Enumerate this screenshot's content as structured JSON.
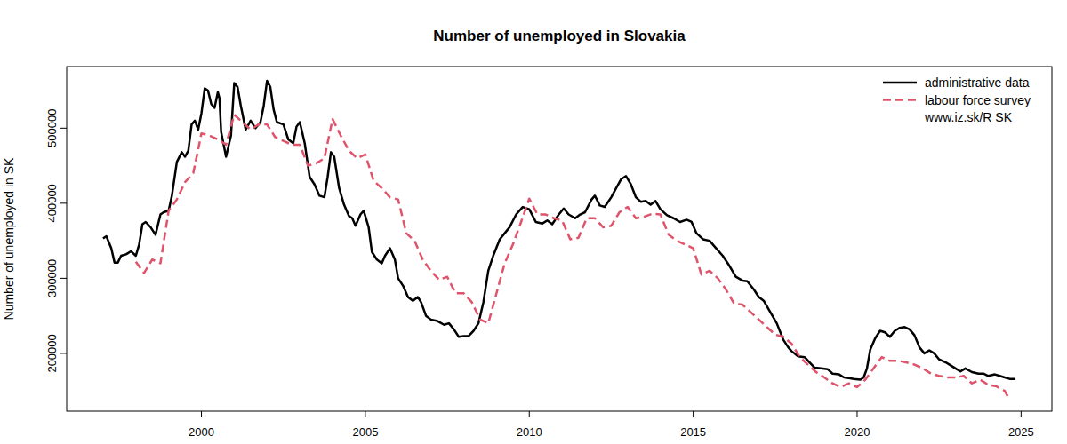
{
  "chart_data": {
    "type": "line",
    "title": "Number of unemployed in Slovakia",
    "y_label": "Number of unemployed in SK",
    "xlim": [
      1995.89,
      2025.94
    ],
    "xticks": [
      2000,
      2005,
      2010,
      2015,
      2020,
      2025
    ],
    "ylim": [
      123000,
      582000
    ],
    "yticks": [
      200000,
      300000,
      400000,
      500000
    ],
    "grid": false,
    "legend": "topright",
    "annotations": [
      "www.iz.sk/R SK"
    ],
    "series": [
      {
        "name": "administrative data",
        "color": "#000000",
        "line_style": "solid",
        "x": [
          1997.0,
          1997.1,
          1997.25,
          1997.35,
          1997.45,
          1997.55,
          1997.7,
          1997.85,
          1998.0,
          1998.1,
          1998.2,
          1998.3,
          1998.45,
          1998.6,
          1998.75,
          1998.85,
          1999.0,
          1999.1,
          1999.25,
          1999.4,
          1999.5,
          1999.6,
          1999.7,
          1999.8,
          1999.9,
          2000.0,
          2000.1,
          2000.2,
          2000.3,
          2000.4,
          2000.5,
          2000.55,
          2000.6,
          2000.75,
          2000.9,
          2001.0,
          2001.1,
          2001.2,
          2001.35,
          2001.5,
          2001.65,
          2001.8,
          2001.9,
          2002.0,
          2002.1,
          2002.2,
          2002.3,
          2002.5,
          2002.65,
          2002.8,
          2002.9,
          2003.0,
          2003.15,
          2003.3,
          2003.45,
          2003.6,
          2003.75,
          2003.85,
          2003.95,
          2004.05,
          2004.2,
          2004.35,
          2004.5,
          2004.6,
          2004.7,
          2004.85,
          2004.95,
          2005.1,
          2005.2,
          2005.35,
          2005.5,
          2005.6,
          2005.75,
          2005.9,
          2006.0,
          2006.15,
          2006.3,
          2006.45,
          2006.6,
          2006.7,
          2006.85,
          2007.0,
          2007.2,
          2007.4,
          2007.55,
          2007.7,
          2007.85,
          2008.0,
          2008.15,
          2008.3,
          2008.45,
          2008.6,
          2008.75,
          2008.9,
          2009.1,
          2009.25,
          2009.4,
          2009.6,
          2009.8,
          2010.0,
          2010.2,
          2010.4,
          2010.55,
          2010.7,
          2010.9,
          2011.05,
          2011.2,
          2011.4,
          2011.55,
          2011.7,
          2011.9,
          2012.0,
          2012.15,
          2012.3,
          2012.5,
          2012.65,
          2012.8,
          2012.95,
          2013.1,
          2013.25,
          2013.4,
          2013.55,
          2013.7,
          2013.85,
          2014.0,
          2014.2,
          2014.4,
          2014.6,
          2014.8,
          2014.95,
          2015.1,
          2015.3,
          2015.5,
          2015.7,
          2015.9,
          2016.1,
          2016.3,
          2016.5,
          2016.65,
          2016.85,
          2017.0,
          2017.15,
          2017.35,
          2017.55,
          2017.75,
          2017.9,
          2018.0,
          2018.2,
          2018.4,
          2018.55,
          2018.7,
          2018.9,
          2019.1,
          2019.25,
          2019.45,
          2019.6,
          2019.75,
          2019.9,
          2020.1,
          2020.2,
          2020.3,
          2020.4,
          2020.55,
          2020.7,
          2020.85,
          2021.0,
          2021.15,
          2021.3,
          2021.45,
          2021.6,
          2021.75,
          2021.9,
          2022.05,
          2022.2,
          2022.35,
          2022.5,
          2022.7,
          2022.85,
          2023.0,
          2023.15,
          2023.3,
          2023.5,
          2023.7,
          2023.85,
          2024.0,
          2024.2,
          2024.35,
          2024.5,
          2024.65,
          2024.83
        ],
        "values": [
          353000,
          356000,
          340000,
          321000,
          321000,
          330000,
          332000,
          336000,
          330000,
          345000,
          372000,
          375000,
          368000,
          358000,
          385000,
          388000,
          390000,
          410000,
          455000,
          468000,
          462000,
          470000,
          505000,
          510000,
          498000,
          520000,
          553000,
          550000,
          532000,
          527000,
          548000,
          540000,
          495000,
          462000,
          490000,
          560000,
          555000,
          530000,
          498000,
          510000,
          500000,
          508000,
          530000,
          563000,
          555000,
          525000,
          508000,
          505000,
          485000,
          480000,
          502000,
          508000,
          480000,
          435000,
          425000,
          410000,
          408000,
          435000,
          468000,
          462000,
          420000,
          398000,
          383000,
          380000,
          370000,
          385000,
          390000,
          368000,
          335000,
          325000,
          320000,
          330000,
          340000,
          325000,
          300000,
          290000,
          275000,
          270000,
          275000,
          268000,
          250000,
          245000,
          243000,
          238000,
          240000,
          232000,
          222000,
          223000,
          223000,
          230000,
          240000,
          268000,
          310000,
          330000,
          352000,
          360000,
          368000,
          385000,
          395000,
          392000,
          375000,
          373000,
          377000,
          372000,
          385000,
          393000,
          385000,
          380000,
          385000,
          388000,
          405000,
          410000,
          397000,
          395000,
          408000,
          420000,
          432000,
          436000,
          425000,
          408000,
          402000,
          403000,
          398000,
          403000,
          392000,
          384000,
          380000,
          375000,
          378000,
          375000,
          360000,
          352000,
          350000,
          340000,
          330000,
          317000,
          302000,
          297000,
          296000,
          285000,
          275000,
          270000,
          255000,
          240000,
          218000,
          208000,
          203000,
          196000,
          195000,
          188000,
          181000,
          180000,
          179000,
          173000,
          172000,
          168000,
          167000,
          166000,
          165000,
          168000,
          180000,
          205000,
          220000,
          230000,
          228000,
          222000,
          230000,
          234000,
          235000,
          232000,
          224000,
          208000,
          200000,
          204000,
          200000,
          192000,
          188000,
          184000,
          180000,
          176000,
          180000,
          175000,
          173000,
          173000,
          170000,
          172000,
          170000,
          168000,
          166000,
          166000
        ]
      },
      {
        "name": "labour force survey",
        "color": "#DF536B",
        "line_style": "dashed",
        "x": [
          1998.0,
          1998.25,
          1998.5,
          1998.75,
          1999.0,
          1999.25,
          1999.5,
          1999.75,
          2000.0,
          2000.25,
          2000.5,
          2000.75,
          2001.0,
          2001.25,
          2001.5,
          2001.75,
          2002.0,
          2002.25,
          2002.5,
          2002.75,
          2003.0,
          2003.25,
          2003.5,
          2003.75,
          2004.0,
          2004.25,
          2004.5,
          2004.75,
          2005.0,
          2005.25,
          2005.5,
          2005.75,
          2006.0,
          2006.25,
          2006.5,
          2006.75,
          2007.0,
          2007.25,
          2007.5,
          2007.75,
          2008.0,
          2008.25,
          2008.5,
          2008.75,
          2009.0,
          2009.25,
          2009.5,
          2009.75,
          2010.0,
          2010.25,
          2010.5,
          2010.75,
          2011.0,
          2011.25,
          2011.5,
          2011.75,
          2012.0,
          2012.25,
          2012.5,
          2012.75,
          2013.0,
          2013.25,
          2013.5,
          2013.75,
          2014.0,
          2014.25,
          2014.5,
          2014.75,
          2015.0,
          2015.25,
          2015.5,
          2015.75,
          2016.0,
          2016.25,
          2016.5,
          2016.75,
          2017.0,
          2017.25,
          2017.5,
          2017.75,
          2018.0,
          2018.25,
          2018.5,
          2018.75,
          2019.0,
          2019.25,
          2019.5,
          2019.75,
          2020.0,
          2020.25,
          2020.5,
          2020.75,
          2021.0,
          2021.25,
          2021.5,
          2021.75,
          2022.0,
          2022.25,
          2022.5,
          2022.75,
          2023.0,
          2023.25,
          2023.5,
          2023.75,
          2024.0,
          2024.25,
          2024.5,
          2024.6
        ],
        "values": [
          322000,
          307000,
          325000,
          320000,
          390000,
          405000,
          428000,
          440000,
          493000,
          490000,
          485000,
          478000,
          518000,
          508000,
          498000,
          505000,
          505000,
          488000,
          483000,
          478000,
          478000,
          450000,
          453000,
          460000,
          512000,
          490000,
          470000,
          460000,
          465000,
          430000,
          420000,
          408000,
          405000,
          360000,
          350000,
          325000,
          310000,
          298000,
          302000,
          280000,
          280000,
          268000,
          245000,
          240000,
          280000,
          320000,
          345000,
          375000,
          406000,
          385000,
          385000,
          380000,
          377000,
          352000,
          354000,
          380000,
          380000,
          368000,
          370000,
          388000,
          395000,
          380000,
          382000,
          386000,
          385000,
          358000,
          350000,
          345000,
          340000,
          305000,
          310000,
          300000,
          285000,
          266000,
          265000,
          255000,
          245000,
          235000,
          225000,
          222000,
          213000,
          195000,
          185000,
          175000,
          168000,
          160000,
          155000,
          160000,
          155000,
          165000,
          180000,
          195000,
          190000,
          190000,
          188000,
          185000,
          180000,
          173000,
          170000,
          168000,
          168000,
          170000,
          160000,
          165000,
          158000,
          156000,
          150000,
          142000
        ]
      }
    ]
  }
}
